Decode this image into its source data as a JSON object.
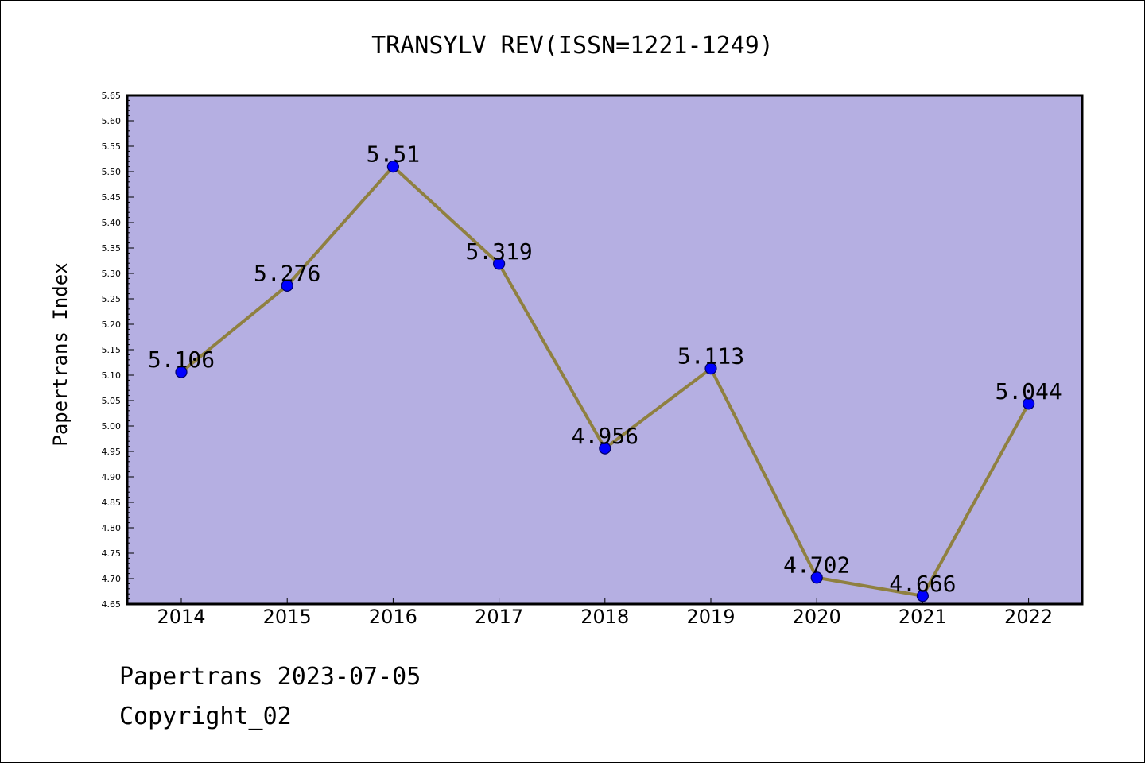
{
  "chart_data": {
    "type": "line",
    "title": "TRANSYLV REV(ISSN=1221-1249)",
    "xlabel": "",
    "ylabel": "Papertrans Index",
    "categories": [
      "2014",
      "2015",
      "2016",
      "2017",
      "2018",
      "2019",
      "2020",
      "2021",
      "2022"
    ],
    "values": [
      5.106,
      5.276,
      5.51,
      5.319,
      4.956,
      5.113,
      4.702,
      4.666,
      5.044
    ],
    "data_labels": [
      "5.106",
      "5.276",
      "5.51",
      "5.319",
      "4.956",
      "5.113",
      "4.702",
      "4.666",
      "5.044"
    ],
    "ylim": [
      4.65,
      5.65
    ],
    "y_ticks": [
      "4.65",
      "4.70",
      "4.75",
      "4.80",
      "4.85",
      "4.90",
      "4.95",
      "5.00",
      "5.05",
      "5.10",
      "5.15",
      "5.20",
      "5.25",
      "5.30",
      "5.35",
      "5.40",
      "5.45",
      "5.50",
      "5.55",
      "5.60",
      "5.65"
    ],
    "grid": false,
    "legend": "none",
    "colors": {
      "plot_background": "#b5afe2",
      "line": "#8f8040",
      "marker": "#0000ff",
      "marker_edge": "#000066"
    }
  },
  "footer": {
    "date_text": "Papertrans 2023-07-05",
    "copyright_text": "Copyright_02"
  }
}
